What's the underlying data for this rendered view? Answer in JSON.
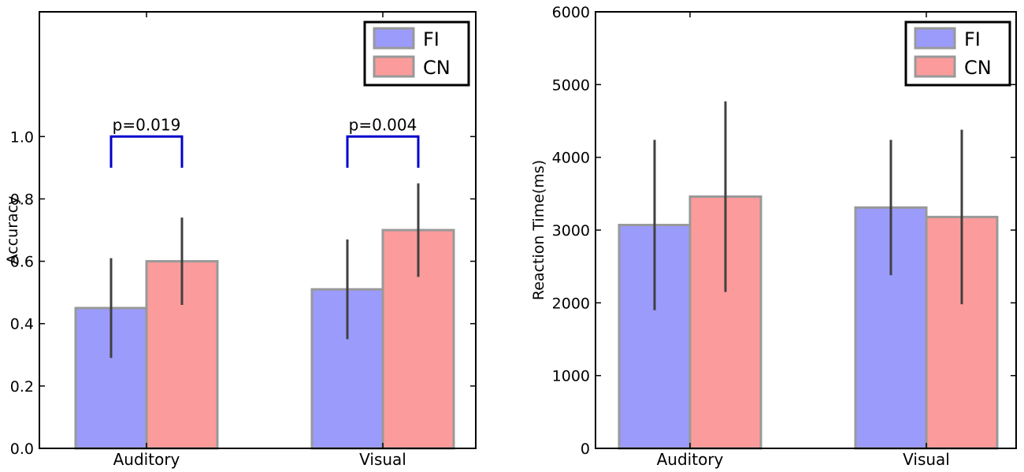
{
  "chart_data": [
    {
      "type": "bar",
      "categories": [
        "Auditory",
        "Visual"
      ],
      "series": [
        {
          "name": "FI",
          "values": [
            0.45,
            0.51
          ],
          "errors": [
            0.16,
            0.16
          ],
          "color": "#9b9bfc"
        },
        {
          "name": "CN",
          "values": [
            0.6,
            0.7
          ],
          "errors": [
            0.14,
            0.15
          ],
          "color": "#fc9b9b"
        }
      ],
      "xlabel": "",
      "ylabel": "Accuracy",
      "ylim": [
        0,
        1.4
      ],
      "yticks": [
        "0.0",
        "0.2",
        "0.4",
        "0.6",
        "0.8",
        "1.0"
      ],
      "legend": "top-right",
      "annotations": [
        {
          "label": "p=0.019",
          "category": "Auditory",
          "y_top": 1.0,
          "y_bottom": 0.9
        },
        {
          "label": "p=0.004",
          "category": "Visual",
          "y_top": 1.0,
          "y_bottom": 0.9
        }
      ]
    },
    {
      "type": "bar",
      "categories": [
        "Auditory",
        "Visual"
      ],
      "series": [
        {
          "name": "FI",
          "values": [
            3070,
            3310
          ],
          "errors": [
            1170,
            930
          ],
          "color": "#9b9bfc"
        },
        {
          "name": "CN",
          "values": [
            3460,
            3180
          ],
          "errors": [
            1310,
            1200
          ],
          "color": "#fc9b9b"
        }
      ],
      "xlabel": "",
      "ylabel": "Reaction Time(ms)",
      "ylim": [
        0,
        6000
      ],
      "yticks": [
        "0",
        "1000",
        "2000",
        "3000",
        "4000",
        "5000",
        "6000"
      ],
      "legend": "top-right"
    }
  ],
  "colors": {
    "bar_edge": "#999999",
    "error_bar": "#404040",
    "annotation": "#0000cc"
  }
}
